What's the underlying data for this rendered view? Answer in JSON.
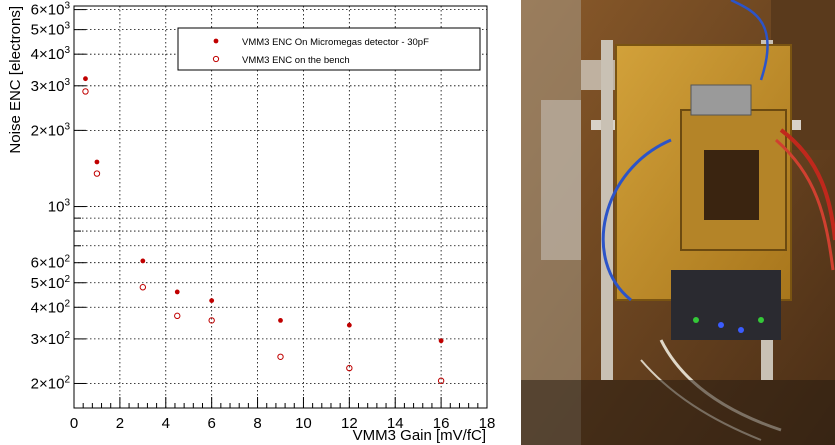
{
  "chart_data": {
    "type": "scatter",
    "xlabel": "VMM3 Gain [mV/fC]",
    "ylabel": "Noise ENC [electrons]",
    "xlim": [
      0,
      18
    ],
    "ylim": [
      160,
      6200
    ],
    "yscale": "log",
    "grid": true,
    "legend_position": "top-right",
    "x_ticks": [
      {
        "value": 0,
        "label": "0"
      },
      {
        "value": 2,
        "label": "2"
      },
      {
        "value": 4,
        "label": "4"
      },
      {
        "value": 6,
        "label": "6"
      },
      {
        "value": 8,
        "label": "8"
      },
      {
        "value": 10,
        "label": "10"
      },
      {
        "value": 12,
        "label": "12"
      },
      {
        "value": 14,
        "label": "14"
      },
      {
        "value": 16,
        "label": "16"
      },
      {
        "value": 18,
        "label": "18"
      }
    ],
    "y_ticks": [
      {
        "value": 200,
        "mant": "2",
        "exp": "2"
      },
      {
        "value": 300,
        "mant": "3",
        "exp": "2"
      },
      {
        "value": 400,
        "mant": "4",
        "exp": "2"
      },
      {
        "value": 500,
        "mant": "5",
        "exp": "2"
      },
      {
        "value": 600,
        "mant": "6",
        "exp": "2"
      },
      {
        "value": 1000,
        "mant": "",
        "exp": "3"
      },
      {
        "value": 2000,
        "mant": "2",
        "exp": "3"
      },
      {
        "value": 3000,
        "mant": "3",
        "exp": "3"
      },
      {
        "value": 4000,
        "mant": "4",
        "exp": "3"
      },
      {
        "value": 5000,
        "mant": "5",
        "exp": "3"
      },
      {
        "value": 6000,
        "mant": "6",
        "exp": "3"
      }
    ],
    "y_minor_grid": [
      700,
      800,
      900
    ],
    "series": [
      {
        "name": "VMM3 ENC On Micromegas detector - 30pF",
        "marker": "filled-circle",
        "color": "#c00000",
        "x": [
          0.5,
          1.0,
          3.0,
          4.5,
          6.0,
          9.0,
          12.0,
          16.0
        ],
        "y": [
          3200,
          1500,
          610,
          460,
          425,
          355,
          340,
          295
        ]
      },
      {
        "name": "VMM3 ENC on the bench",
        "marker": "open-circle",
        "color": "#c00000",
        "x": [
          0.5,
          1.0,
          3.0,
          4.5,
          6.0,
          9.0,
          12.0,
          16.0
        ],
        "y": [
          2850,
          1350,
          480,
          370,
          355,
          255,
          230,
          205
        ]
      }
    ]
  },
  "photo": {
    "description_icon": "detector-photo"
  }
}
